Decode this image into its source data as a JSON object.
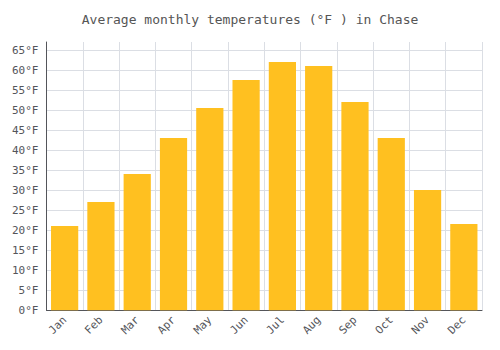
{
  "chart_data": {
    "type": "bar",
    "title": "Average monthly temperatures (°F ) in Chase",
    "categories": [
      "Jan",
      "Feb",
      "Mar",
      "Apr",
      "May",
      "Jun",
      "Jul",
      "Aug",
      "Sep",
      "Oct",
      "Nov",
      "Dec"
    ],
    "values": [
      21,
      27,
      34,
      43,
      50.5,
      57.5,
      62,
      61,
      52,
      43,
      30,
      21.5
    ],
    "color": "#FFC020",
    "ylim": [
      0,
      67
    ],
    "yticks": [
      {
        "value": 0,
        "label": "0°F"
      },
      {
        "value": 5,
        "label": "5°F"
      },
      {
        "value": 10,
        "label": "10°F"
      },
      {
        "value": 15,
        "label": "15°F"
      },
      {
        "value": 20,
        "label": "20°F"
      },
      {
        "value": 25,
        "label": "25°F"
      },
      {
        "value": 30,
        "label": "30°F"
      },
      {
        "value": 35,
        "label": "35°F"
      },
      {
        "value": 40,
        "label": "40°F"
      },
      {
        "value": 45,
        "label": "45°F"
      },
      {
        "value": 50,
        "label": "50°F"
      },
      {
        "value": 55,
        "label": "55°F"
      },
      {
        "value": 60,
        "label": "60°F"
      },
      {
        "value": 65,
        "label": "65°F"
      }
    ],
    "grid": true
  }
}
